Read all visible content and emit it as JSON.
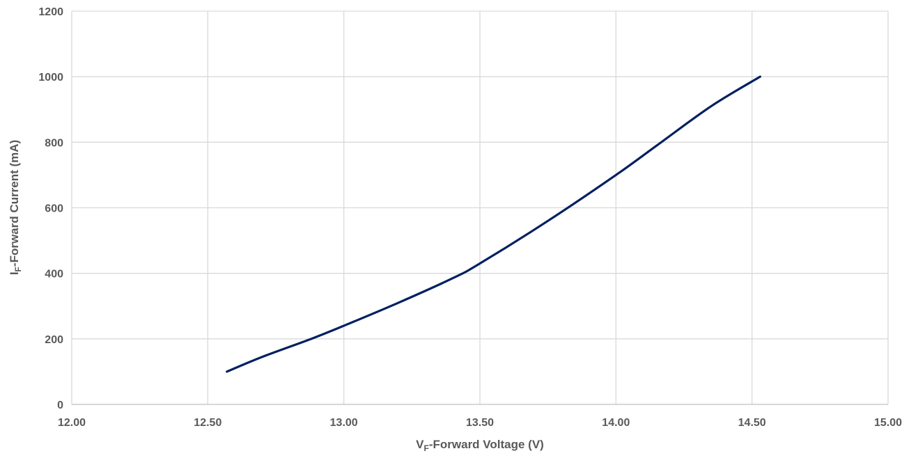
{
  "chart_data": {
    "type": "line",
    "xlabel": {
      "main": "V",
      "sub": "F",
      "rest": "-Forward Voltage (V)"
    },
    "ylabel": {
      "main": "I",
      "sub": "F",
      "rest": "-Forward Current (mA)"
    },
    "xlim": [
      12.0,
      15.0
    ],
    "ylim": [
      0,
      1200
    ],
    "x_ticks": [
      "12.00",
      "12.50",
      "13.00",
      "13.50",
      "14.00",
      "14.50",
      "15.00"
    ],
    "y_ticks": [
      "0",
      "200",
      "400",
      "600",
      "800",
      "1000",
      "1200"
    ],
    "grid": true,
    "series": [
      {
        "color": "#002060",
        "x": [
          12.57,
          12.7,
          12.88,
          13.0,
          13.2,
          13.4,
          13.5,
          13.75,
          14.0,
          14.15,
          14.35,
          14.53
        ],
        "y": [
          100,
          145,
          200,
          240,
          310,
          385,
          430,
          560,
          700,
          790,
          910,
          1000
        ]
      }
    ]
  }
}
